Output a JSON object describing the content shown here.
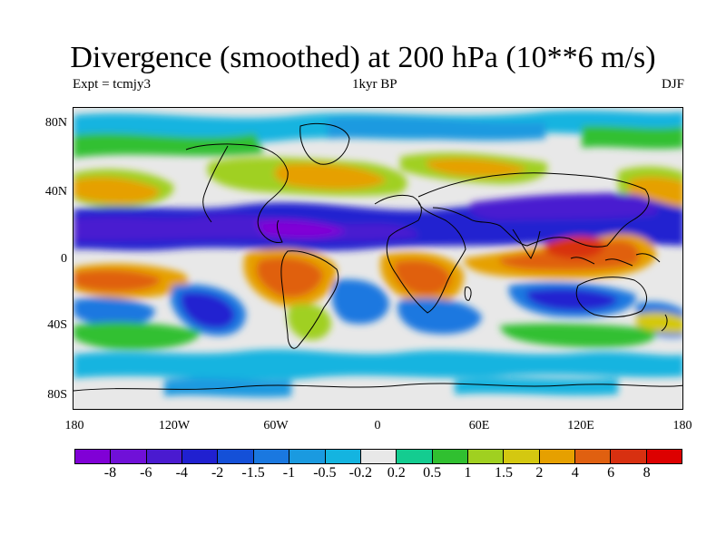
{
  "title": "Divergence (smoothed) at 200 hPa (10**6 m/s)",
  "subtitle_left": "Expt = tcmjy3",
  "subtitle_center": "1kyr BP",
  "subtitle_right": "DJF",
  "lat_labels": [
    "80N",
    "40N",
    "0",
    "40S",
    "80S"
  ],
  "lon_labels": [
    "180",
    "120W",
    "60W",
    "0",
    "60E",
    "120E",
    "180"
  ],
  "colorbar": {
    "labels": [
      "-8",
      "-6",
      "-4",
      "-2",
      "-1.5",
      "-1",
      "-0.5",
      "-0.2",
      "0.2",
      "0.5",
      "1",
      "1.5",
      "2",
      "4",
      "6",
      "8"
    ],
    "colors": [
      "#8000d6",
      "#7010d8",
      "#4a1ad0",
      "#2020d0",
      "#1450d8",
      "#1a78e0",
      "#1a9ae0",
      "#14b4e0",
      "#e8e8e8",
      "#14cc90",
      "#30c030",
      "#a0d020",
      "#d4c810",
      "#e6a000",
      "#e06010",
      "#d83010",
      "#dd0000"
    ]
  },
  "palette": {
    "background": "#e8e8e8",
    "coastline": "#000000"
  }
}
